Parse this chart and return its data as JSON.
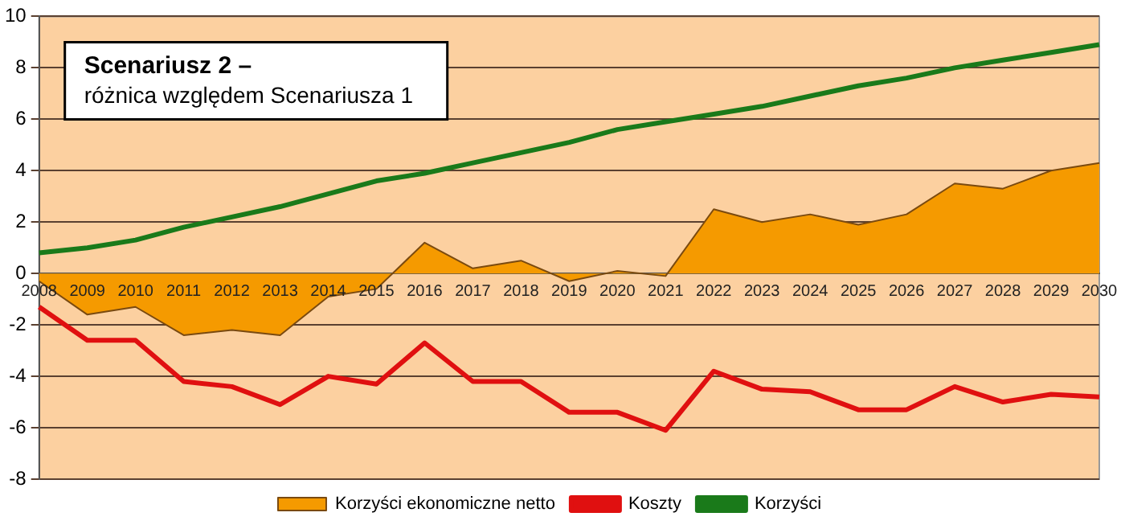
{
  "chart_data": {
    "type": "line",
    "title": "Scenariusz 2 –",
    "subtitle": "różnica względem Scenariusza 1",
    "categories": [
      "2008",
      "2009",
      "2010",
      "2011",
      "2012",
      "2013",
      "2014",
      "2015",
      "2016",
      "2017",
      "2018",
      "2019",
      "2020",
      "2021",
      "2022",
      "2023",
      "2024",
      "2025",
      "2026",
      "2027",
      "2028",
      "2029",
      "2030"
    ],
    "series": [
      {
        "name": "Korzyści ekonomiczne netto",
        "type": "area",
        "color": "#f59a00",
        "values": [
          -0.3,
          -1.6,
          -1.3,
          -2.4,
          -2.2,
          -2.4,
          -0.9,
          -0.6,
          1.2,
          0.2,
          0.5,
          -0.3,
          0.1,
          -0.1,
          2.5,
          2.0,
          2.3,
          1.9,
          2.3,
          3.5,
          3.3,
          4.0,
          4.3
        ]
      },
      {
        "name": "Koszty",
        "type": "line",
        "color": "#e01010",
        "values": [
          -1.3,
          -2.6,
          -2.6,
          -4.2,
          -4.4,
          -5.1,
          -4.0,
          -4.3,
          -2.7,
          -4.2,
          -4.2,
          -5.4,
          -5.4,
          -6.1,
          -3.8,
          -4.5,
          -4.6,
          -5.3,
          -5.3,
          -4.4,
          -5.0,
          -4.7,
          -4.8
        ]
      },
      {
        "name": "Korzyści",
        "type": "line",
        "color": "#1a7a1a",
        "values": [
          0.8,
          1.0,
          1.3,
          1.8,
          2.2,
          2.6,
          3.1,
          3.6,
          3.9,
          4.3,
          4.7,
          5.1,
          5.6,
          5.9,
          6.2,
          6.5,
          6.9,
          7.3,
          7.6,
          8.0,
          8.3,
          8.6,
          8.9
        ]
      }
    ],
    "ylim": [
      -8,
      10
    ],
    "yticks": [
      -8,
      -6,
      -4,
      -2,
      0,
      2,
      4,
      6,
      8,
      10
    ],
    "grid": "y",
    "legend": "bottom",
    "marker": "none"
  }
}
